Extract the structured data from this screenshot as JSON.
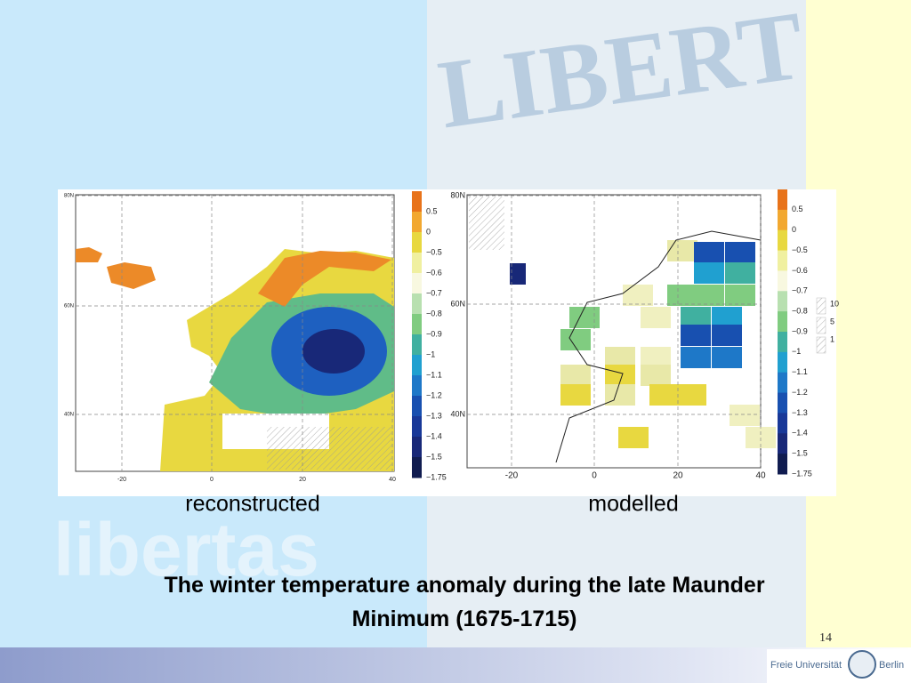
{
  "slide": {
    "watermark": {
      "top": "LIBERT",
      "bottom": "libertas"
    },
    "title": "The winter temperature anomaly during the late Maunder Minimum (1675-1715)",
    "page_number": "14",
    "logo": {
      "left": "Freie Universität",
      "right": "Berlin"
    }
  },
  "panels": [
    {
      "caption": "reconstructed",
      "lat_labels": [
        "80N",
        "60N",
        "40N"
      ],
      "lon_labels": [
        "-20",
        "0",
        "20",
        "40"
      ],
      "colorbar_labels": [
        "0.5",
        "0",
        "−0.5",
        "−0.6",
        "−0.7",
        "−0.8",
        "−0.9",
        "−1",
        "−1.1",
        "−1.2",
        "−1.3",
        "−1.4",
        "−1.5",
        "−1.75"
      ]
    },
    {
      "caption": "modelled",
      "lat_labels": [
        "80N",
        "60N",
        "40N"
      ],
      "lon_labels": [
        "-20",
        "0",
        "20",
        "40"
      ],
      "colorbar_labels": [
        "0.5",
        "0",
        "−0.5",
        "−0.6",
        "−0.7",
        "−0.8",
        "−0.9",
        "−1",
        "−1.1",
        "−1.2",
        "−1.3",
        "−1.4",
        "−1.5",
        "−1.75"
      ],
      "hatch_legend": [
        "10",
        "5",
        "1"
      ]
    }
  ]
}
